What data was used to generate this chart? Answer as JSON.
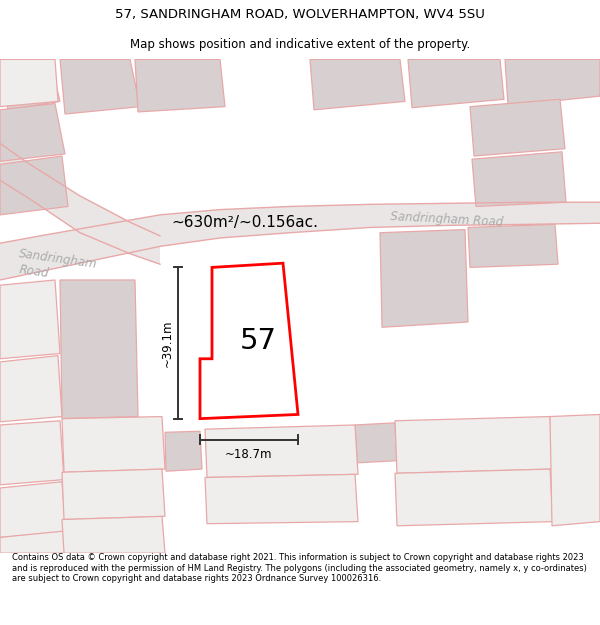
{
  "title_line1": "57, SANDRINGHAM ROAD, WOLVERHAMPTON, WV4 5SU",
  "title_line2": "Map shows position and indicative extent of the property.",
  "footer_text": "Contains OS data © Crown copyright and database right 2021. This information is subject to Crown copyright and database rights 2023 and is reproduced with the permission of HM Land Registry. The polygons (including the associated geometry, namely x, y co-ordinates) are subject to Crown copyright and database rights 2023 Ordnance Survey 100026316.",
  "area_label": "~630m²/~0.156ac.",
  "height_label": "~39.1m",
  "width_label": "~18.7m",
  "number_label": "57",
  "bg_color": "#f2eeee",
  "road_color_line": "#e8a8a8",
  "building_fill": "#d8d0d0",
  "road_band_fill": "#eae6e6",
  "dim_line_color": "#333333",
  "road_label_color": "#aaaaaa",
  "title_fontsize": 9.5,
  "subtitle_fontsize": 8.5,
  "footer_fontsize": 6.0
}
